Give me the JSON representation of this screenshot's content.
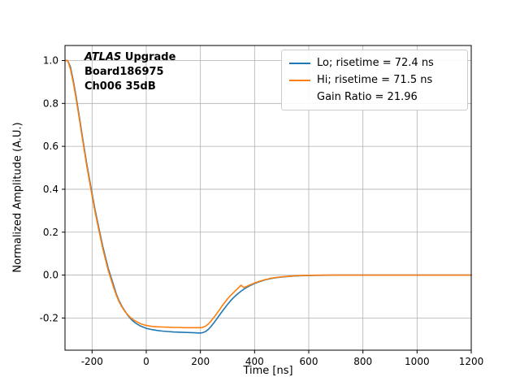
{
  "figure": {
    "background": "#ffffff",
    "annotation": {
      "line1_italic": "ATLAS",
      "line1_rest": " Upgrade",
      "line2": "Board186975",
      "line3": "Ch006 35dB"
    },
    "legend": {
      "position": "upper right",
      "entries": [
        {
          "label": "Lo; risetime = 72.4 ns",
          "color": "#1f77b4"
        },
        {
          "label": "Hi; risetime = 71.5 ns",
          "color": "#ff7f0e"
        },
        {
          "label": "Gain Ratio = 21.96",
          "color": null
        }
      ]
    }
  },
  "chart_data": {
    "type": "line",
    "title": "",
    "xlabel": "Time [ns]",
    "ylabel": "Normalized Amplitude (A.U.)",
    "xlim": [
      -300,
      1200
    ],
    "ylim": [
      -0.35,
      1.07
    ],
    "xticks": [
      -200,
      0,
      200,
      400,
      600,
      800,
      1000,
      1200
    ],
    "yticks": [
      -0.2,
      0.0,
      0.2,
      0.4,
      0.6,
      0.8,
      1.0
    ],
    "grid": true,
    "legend_position": "upper right",
    "colors": {
      "grid": "#b0b0b0",
      "axis": "#000000"
    },
    "annotations": [
      "ATLAS Upgrade",
      "Board186975",
      "Ch006 35dB",
      "Gain Ratio = 21.96"
    ],
    "x": [
      -300,
      -290,
      -280,
      -270,
      -260,
      -250,
      -240,
      -230,
      -220,
      -210,
      -200,
      -190,
      -180,
      -170,
      -160,
      -150,
      -140,
      -130,
      -120,
      -110,
      -100,
      -90,
      -80,
      -70,
      -60,
      -50,
      -40,
      -30,
      -20,
      -10,
      0,
      20,
      40,
      60,
      80,
      100,
      120,
      140,
      160,
      180,
      200,
      210,
      220,
      230,
      240,
      250,
      260,
      270,
      280,
      290,
      300,
      310,
      320,
      330,
      340,
      350,
      360,
      370,
      380,
      390,
      400,
      420,
      440,
      460,
      480,
      500,
      550,
      600,
      650,
      700,
      800,
      900,
      1000,
      1100,
      1200
    ],
    "series": [
      {
        "name": "Lo; risetime = 72.4 ns",
        "risetime_ns": 72.4,
        "color": "#1f77b4",
        "values": [
          1.0,
          1.0,
          0.97,
          0.91,
          0.84,
          0.76,
          0.68,
          0.6,
          0.52,
          0.45,
          0.38,
          0.31,
          0.25,
          0.19,
          0.13,
          0.08,
          0.03,
          -0.01,
          -0.05,
          -0.09,
          -0.12,
          -0.145,
          -0.165,
          -0.185,
          -0.2,
          -0.213,
          -0.223,
          -0.231,
          -0.238,
          -0.243,
          -0.248,
          -0.254,
          -0.258,
          -0.261,
          -0.263,
          -0.265,
          -0.266,
          -0.267,
          -0.268,
          -0.269,
          -0.27,
          -0.268,
          -0.262,
          -0.252,
          -0.238,
          -0.222,
          -0.205,
          -0.187,
          -0.17,
          -0.153,
          -0.137,
          -0.122,
          -0.108,
          -0.096,
          -0.085,
          -0.075,
          -0.066,
          -0.058,
          -0.051,
          -0.045,
          -0.039,
          -0.03,
          -0.022,
          -0.016,
          -0.012,
          -0.009,
          -0.004,
          -0.002,
          -0.001,
          0.0,
          0.0,
          0.0,
          0.0,
          0.0,
          0.0
        ]
      },
      {
        "name": "Hi; risetime = 71.5 ns",
        "risetime_ns": 71.5,
        "color": "#ff7f0e",
        "values": [
          1.0,
          1.0,
          0.96,
          0.9,
          0.83,
          0.75,
          0.67,
          0.59,
          0.51,
          0.44,
          0.37,
          0.3,
          0.24,
          0.18,
          0.12,
          0.07,
          0.02,
          -0.02,
          -0.06,
          -0.095,
          -0.125,
          -0.148,
          -0.167,
          -0.183,
          -0.196,
          -0.206,
          -0.214,
          -0.221,
          -0.227,
          -0.231,
          -0.235,
          -0.239,
          -0.241,
          -0.242,
          -0.243,
          -0.244,
          -0.244,
          -0.245,
          -0.245,
          -0.245,
          -0.245,
          -0.243,
          -0.237,
          -0.227,
          -0.213,
          -0.197,
          -0.18,
          -0.162,
          -0.144,
          -0.127,
          -0.111,
          -0.097,
          -0.084,
          -0.072,
          -0.06,
          -0.047,
          -0.058,
          -0.053,
          -0.047,
          -0.042,
          -0.037,
          -0.028,
          -0.021,
          -0.015,
          -0.011,
          -0.008,
          -0.003,
          -0.001,
          0.0,
          0.0,
          0.0,
          0.0,
          0.0,
          0.0,
          0.0
        ]
      }
    ],
    "gain_ratio": 21.96
  }
}
